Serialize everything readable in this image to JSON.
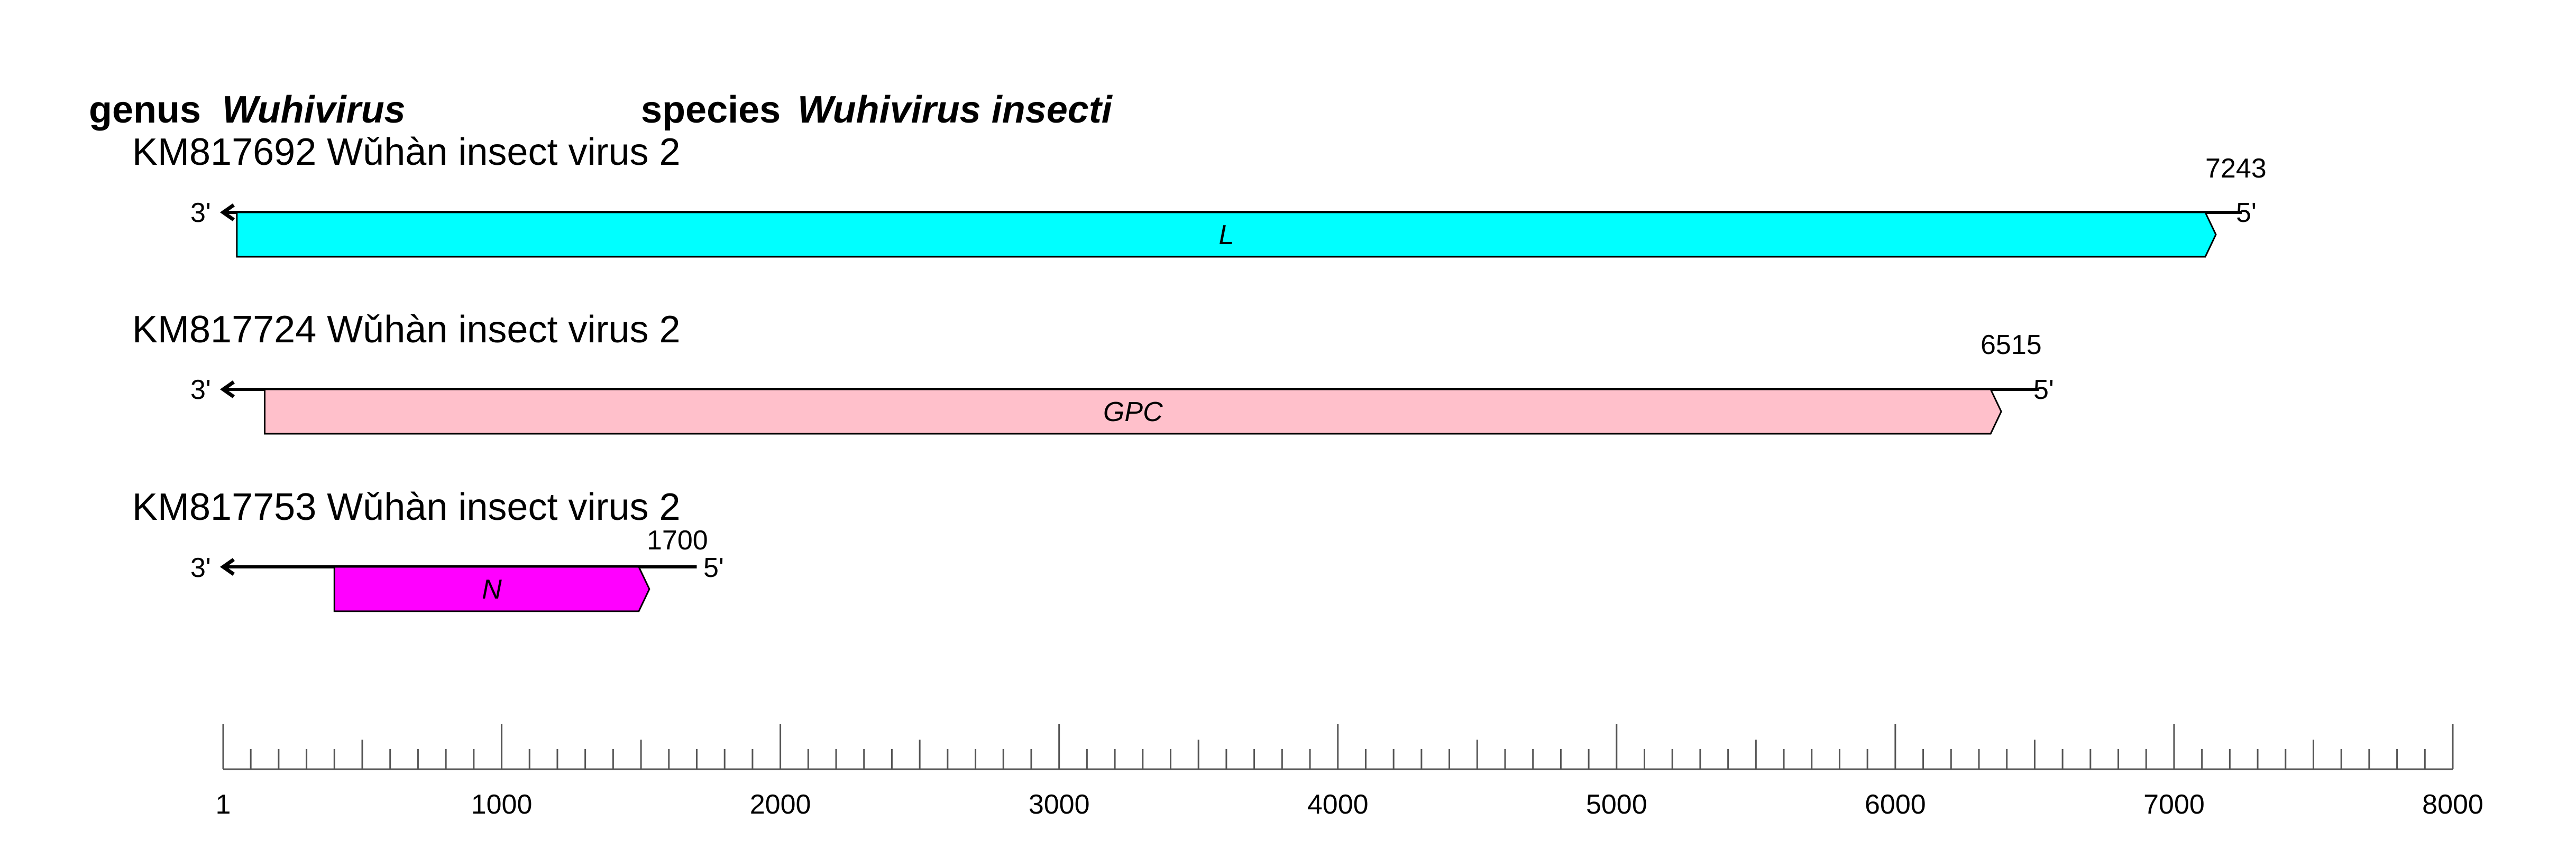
{
  "header": {
    "genus_label": "genus",
    "genus_name": "Wuhivirus",
    "species_label": "species",
    "species_name": "Wuhivirus insecti"
  },
  "end_labels": {
    "three_prime": "3'",
    "five_prime": "5'"
  },
  "segments": [
    {
      "title": "KM817692 Wǔhàn insect virus 2",
      "length": 7243,
      "length_label": "7243",
      "gene": {
        "name": "L",
        "start": 50,
        "end": 7150,
        "color": "#00ffff"
      }
    },
    {
      "title": "KM817724 Wǔhàn insect virus 2",
      "length": 6515,
      "length_label": "6515",
      "gene": {
        "name": "GPC",
        "start": 150,
        "end": 6380,
        "color": "#ffc0cb"
      }
    },
    {
      "title": "KM817753 Wǔhàn insect virus 2",
      "length": 1700,
      "length_label": "1700",
      "gene": {
        "name": "N",
        "start": 400,
        "end": 1530,
        "color": "#ff00ff"
      }
    }
  ],
  "scale": {
    "min": 1,
    "max": 8000,
    "minor_step": 100,
    "mid_step": 500,
    "major_step": 1000,
    "tick_labels": [
      "1",
      "1000",
      "2000",
      "3000",
      "4000",
      "5000",
      "6000",
      "7000",
      "8000"
    ]
  }
}
